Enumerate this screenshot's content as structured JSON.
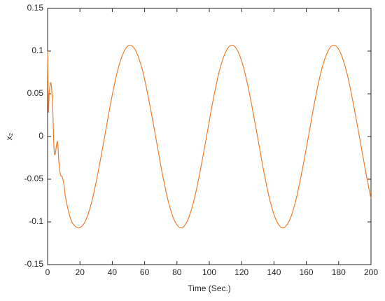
{
  "chart_data": {
    "type": "line",
    "xlabel": "Time (Sec.)",
    "ylabel": "x₂",
    "xlim": [
      0,
      200
    ],
    "ylim": [
      -0.15,
      0.15
    ],
    "xticks": [
      0,
      20,
      40,
      60,
      80,
      100,
      120,
      140,
      160,
      180,
      200
    ],
    "yticks": [
      -0.15,
      -0.1,
      -0.05,
      0,
      0.05,
      0.1,
      0.15
    ],
    "series": [
      {
        "color": "#ee7d2b",
        "x": [
          0,
          0.5,
          1,
          2,
          3,
          4,
          4.8,
          5.5,
          6.2,
          7,
          8,
          9,
          10,
          11,
          12,
          14,
          16,
          19.5,
          23.4,
          27.4,
          31.3,
          35.3,
          39.2,
          43.1,
          47.1,
          51.0,
          54.9,
          58.9,
          62.8,
          66.8,
          70.7,
          74.6,
          78.6,
          82.5,
          86.4,
          90.4,
          94.3,
          98.3,
          102.2,
          106.1,
          110.1,
          114.0,
          117.9,
          121.9,
          125.8,
          129.8,
          133.7,
          137.6,
          141.6,
          145.5,
          149.4,
          153.4,
          157.3,
          161.3,
          165.2,
          169.1,
          173.1,
          177.0,
          180.9,
          184.9,
          188.8,
          192.8,
          196.7,
          200
        ],
        "values": [
          0.1,
          0.03,
          0.05,
          0.063,
          0.04,
          -0.015,
          -0.02,
          -0.01,
          -0.007,
          -0.03,
          -0.045,
          -0.047,
          -0.055,
          -0.07,
          -0.08,
          -0.095,
          -0.103,
          -0.107,
          -0.0989,
          -0.0757,
          -0.041,
          0,
          0.041,
          0.0757,
          0.0989,
          0.107,
          0.0989,
          0.0757,
          0.041,
          0,
          -0.041,
          -0.0757,
          -0.0989,
          -0.107,
          -0.0989,
          -0.0757,
          -0.041,
          0,
          0.041,
          0.0757,
          0.0989,
          0.107,
          0.0989,
          0.0757,
          0.041,
          0,
          -0.041,
          -0.0757,
          -0.0989,
          -0.107,
          -0.0989,
          -0.0757,
          -0.041,
          0,
          0.041,
          0.0757,
          0.0989,
          0.107,
          0.0989,
          0.0757,
          0.041,
          0,
          -0.041,
          -0.073
        ]
      }
    ],
    "grid": false
  }
}
